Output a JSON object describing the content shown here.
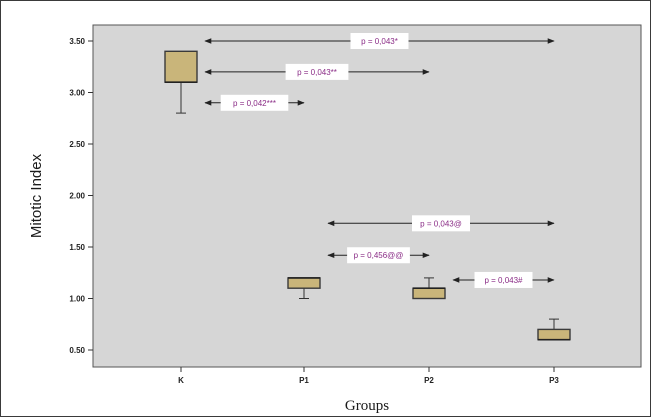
{
  "chart_data": {
    "type": "box",
    "xlabel": "Groups",
    "ylabel": "Mitotic Index",
    "categories": [
      "K",
      "P1",
      "P2",
      "P3"
    ],
    "ylim": [
      0.3,
      3.6
    ],
    "yticks": [
      "0.50",
      "1.00",
      "1.50",
      "2.00",
      "2.50",
      "3.00",
      "3.50"
    ],
    "grid": false,
    "boxes": [
      {
        "category": "K",
        "whisker_low": 2.8,
        "q1": 3.1,
        "median": 3.1,
        "q3": 3.4,
        "whisker_high": 3.4
      },
      {
        "category": "P1",
        "whisker_low": 1.0,
        "q1": 1.1,
        "median": 1.2,
        "q3": 1.2,
        "whisker_high": 1.2
      },
      {
        "category": "P2",
        "whisker_low": 1.0,
        "q1": 1.0,
        "median": 1.1,
        "q3": 1.1,
        "whisker_high": 1.2
      },
      {
        "category": "P3",
        "whisker_low": 0.6,
        "q1": 0.6,
        "median": 0.6,
        "q3": 0.7,
        "whisker_high": 0.8
      }
    ],
    "annotations": [
      {
        "text": "p = 0,043*",
        "from": "K",
        "to": "P3",
        "y": 3.5
      },
      {
        "text": "p = 0,043**",
        "from": "K",
        "to": "P2",
        "y": 3.2
      },
      {
        "text": "p = 0,042***",
        "from": "K",
        "to": "P1",
        "y": 2.9
      },
      {
        "text": "p = 0,043@",
        "from": "P1",
        "to": "P3",
        "y": 1.73
      },
      {
        "text": "p = 0,456@@",
        "from": "P1",
        "to": "P2",
        "y": 1.42
      },
      {
        "text": "p = 0,043#",
        "from": "P2",
        "to": "P3",
        "y": 1.18
      }
    ],
    "colors": {
      "plot_background": "#d6d6d6",
      "box_fill": "#c9b57a",
      "box_stroke": "#3a3a3a",
      "annotation_text": "#8a2c86",
      "arrow": "#222222"
    }
  }
}
